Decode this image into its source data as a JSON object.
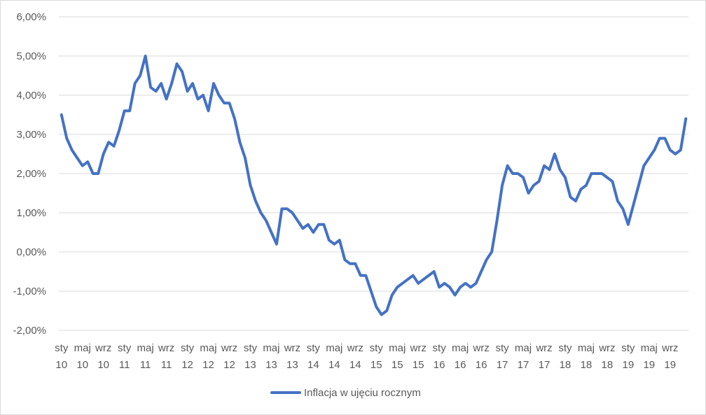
{
  "chart_data": {
    "type": "line",
    "y_tick_labels": [
      "6,00%",
      "5,00%",
      "4,00%",
      "3,00%",
      "2,00%",
      "1,00%",
      "0,00%",
      "-1,00%",
      "-2,00%"
    ],
    "y_ticks": [
      6,
      5,
      4,
      3,
      2,
      1,
      0,
      -1,
      -2
    ],
    "ylim": [
      -2,
      6
    ],
    "grid": true,
    "legend_position": "bottom",
    "x_tick_labels": [
      [
        "sty",
        "10"
      ],
      [
        "maj",
        "10"
      ],
      [
        "wrz",
        "10"
      ],
      [
        "sty",
        "11"
      ],
      [
        "maj",
        "11"
      ],
      [
        "wrz",
        "11"
      ],
      [
        "sty",
        "12"
      ],
      [
        "maj",
        "12"
      ],
      [
        "wrz",
        "12"
      ],
      [
        "sty",
        "13"
      ],
      [
        "maj",
        "13"
      ],
      [
        "wrz",
        "13"
      ],
      [
        "sty",
        "14"
      ],
      [
        "maj",
        "14"
      ],
      [
        "wrz",
        "14"
      ],
      [
        "sty",
        "15"
      ],
      [
        "maj",
        "15"
      ],
      [
        "wrz",
        "15"
      ],
      [
        "sty",
        "16"
      ],
      [
        "maj",
        "16"
      ],
      [
        "wrz",
        "16"
      ],
      [
        "sty",
        "17"
      ],
      [
        "maj",
        "17"
      ],
      [
        "wrz",
        "17"
      ],
      [
        "sty",
        "18"
      ],
      [
        "maj",
        "18"
      ],
      [
        "wrz",
        "18"
      ],
      [
        "sty",
        "19"
      ],
      [
        "maj",
        "19"
      ],
      [
        "wrz",
        "19"
      ]
    ],
    "series": [
      {
        "name": "Inflacja w ujęciu rocznym",
        "color": "#4472c4",
        "values": [
          3.5,
          2.9,
          2.6,
          2.4,
          2.2,
          2.3,
          2.0,
          2.0,
          2.5,
          2.8,
          2.7,
          3.1,
          3.6,
          3.6,
          4.3,
          4.5,
          5.0,
          4.2,
          4.1,
          4.3,
          3.9,
          4.3,
          4.8,
          4.6,
          4.1,
          4.3,
          3.9,
          4.0,
          3.6,
          4.3,
          4.0,
          3.8,
          3.8,
          3.4,
          2.8,
          2.4,
          1.7,
          1.3,
          1.0,
          0.8,
          0.5,
          0.2,
          1.1,
          1.1,
          1.0,
          0.8,
          0.6,
          0.7,
          0.5,
          0.7,
          0.7,
          0.3,
          0.2,
          0.3,
          -0.2,
          -0.3,
          -0.3,
          -0.6,
          -0.6,
          -1.0,
          -1.4,
          -1.6,
          -1.5,
          -1.1,
          -0.9,
          -0.8,
          -0.7,
          -0.6,
          -0.8,
          -0.7,
          -0.6,
          -0.5,
          -0.9,
          -0.8,
          -0.9,
          -1.1,
          -0.9,
          -0.8,
          -0.9,
          -0.8,
          -0.5,
          -0.2,
          0.0,
          0.8,
          1.7,
          2.2,
          2.0,
          2.0,
          1.9,
          1.5,
          1.7,
          1.8,
          2.2,
          2.1,
          2.5,
          2.1,
          1.9,
          1.4,
          1.3,
          1.6,
          1.7,
          2.0,
          2.0,
          2.0,
          1.9,
          1.8,
          1.3,
          1.1,
          0.7,
          1.2,
          1.7,
          2.2,
          2.4,
          2.6,
          2.9,
          2.9,
          2.6,
          2.5,
          2.6,
          3.4
        ]
      }
    ]
  }
}
